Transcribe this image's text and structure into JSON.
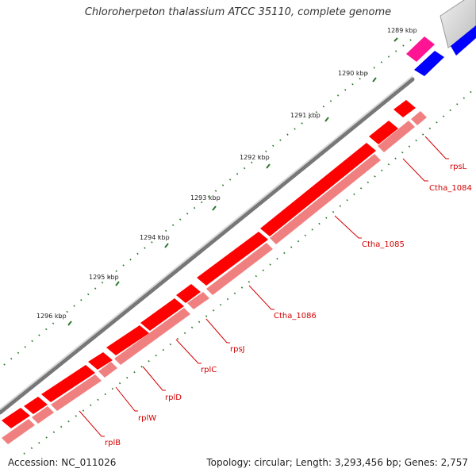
{
  "title": "Chloroherpeton thalassium ATCC 35110, complete genome",
  "footer": {
    "accession": "Accession: NC_011026",
    "summary": "Topology: circular; Length: 3,293,456 bp; Genes: 2,757"
  },
  "colors": {
    "strand_forward": "#ff0000",
    "strand_reverse": "#f08080",
    "trna": "#ff1493",
    "blue": "#0000ff",
    "tick": "#2a7a2a",
    "backbone": "#888888"
  },
  "ticks": [
    {
      "label": "1289 kbp"
    },
    {
      "label": "1290 kbp"
    },
    {
      "label": "1291 kbp"
    },
    {
      "label": "1292 kbp"
    },
    {
      "label": "1293 kbp"
    },
    {
      "label": "1294 kbp"
    },
    {
      "label": "1295 kbp"
    },
    {
      "label": "1296 kbp"
    }
  ],
  "gene_labels": [
    {
      "label": "rpsL"
    },
    {
      "label": "Ctha_1084"
    },
    {
      "label": "Ctha_1085"
    },
    {
      "label": "Ctha_1086"
    },
    {
      "label": "rpsJ"
    },
    {
      "label": "rplC"
    },
    {
      "label": "rplD"
    },
    {
      "label": "rplW"
    },
    {
      "label": "rplB"
    }
  ]
}
